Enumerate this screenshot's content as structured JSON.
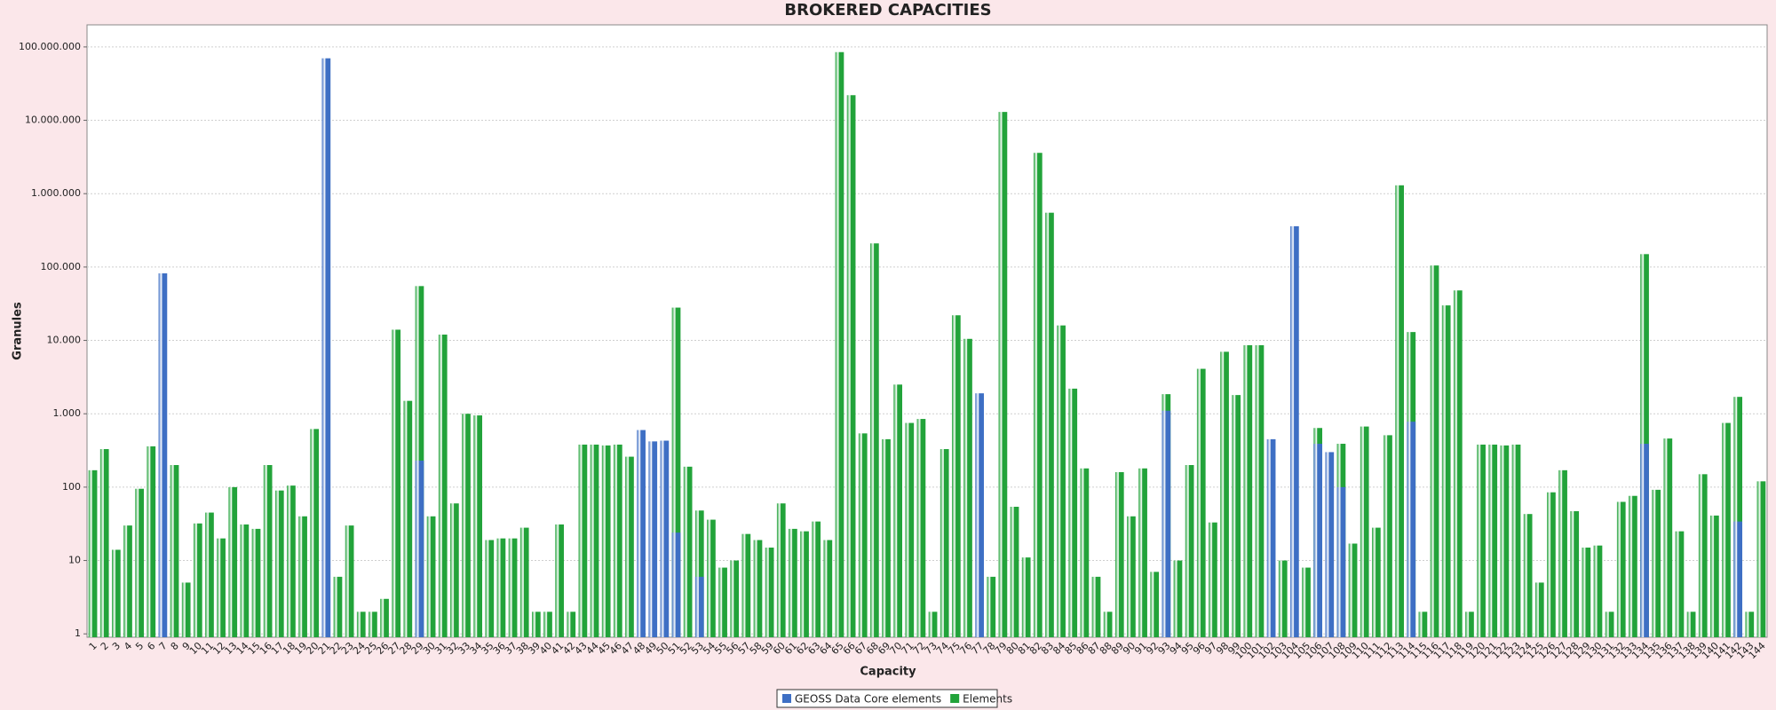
{
  "chart_data": {
    "type": "bar",
    "title": "BROKERED CAPACITIES",
    "x_label": "Capacity",
    "y_label": "Granules",
    "log_scale": true,
    "grid": true,
    "legend": "bottom",
    "categories": [
      "1",
      "2",
      "3",
      "4",
      "5",
      "6",
      "7",
      "8",
      "9",
      "10",
      "11",
      "12",
      "13",
      "14",
      "15",
      "16",
      "17",
      "18",
      "19",
      "20",
      "21",
      "22",
      "23",
      "24",
      "25",
      "26",
      "27",
      "28",
      "29",
      "30",
      "31",
      "32",
      "33",
      "34",
      "35",
      "36",
      "37",
      "38",
      "39",
      "40",
      "41",
      "42",
      "43",
      "44",
      "45",
      "46",
      "47",
      "48",
      "49",
      "50",
      "51",
      "52",
      "53",
      "54",
      "55",
      "56",
      "57",
      "58",
      "59",
      "60",
      "61",
      "62",
      "63",
      "64",
      "65",
      "66",
      "67",
      "68",
      "69",
      "70",
      "71",
      "72",
      "73",
      "74",
      "75",
      "76",
      "77",
      "78",
      "79",
      "80",
      "81",
      "82",
      "83",
      "84",
      "85",
      "86",
      "87",
      "88",
      "89",
      "90",
      "91",
      "92",
      "93",
      "94",
      "95",
      "96",
      "97",
      "98",
      "99",
      "100",
      "101",
      "102",
      "103",
      "104",
      "105",
      "106",
      "107",
      "108",
      "109",
      "110",
      "111",
      "112",
      "113",
      "114",
      "115",
      "116",
      "117",
      "118",
      "119",
      "120",
      "121",
      "122",
      "123",
      "124",
      "125",
      "126",
      "127",
      "128",
      "129",
      "130",
      "131",
      "132",
      "133",
      "134",
      "135",
      "136",
      "137",
      "138",
      "139",
      "140",
      "141",
      "142",
      "143",
      "144"
    ],
    "ylim": [
      0.9,
      200000000
    ],
    "yticks": [
      1,
      10,
      100,
      {
        "value": 1000,
        "label": "1.000"
      },
      {
        "value": 10000,
        "label": "10.000"
      },
      {
        "value": 100000,
        "label": "100.000"
      },
      {
        "value": 1000000,
        "label": "1.000.000"
      },
      {
        "value": 10000000,
        "label": "10.000.000"
      },
      {
        "value": 100000000,
        "label": "100.000.000"
      }
    ],
    "series": [
      {
        "name": "Elements",
        "color": "#22a33a",
        "values": [
          170,
          330,
          14,
          30,
          95,
          360,
          null,
          200,
          5,
          32,
          45,
          20,
          100,
          31,
          27,
          200,
          90,
          105,
          40,
          620,
          null,
          6,
          30,
          2,
          2,
          3,
          14000,
          1500,
          55000,
          40,
          12000,
          60,
          1000,
          950,
          19,
          20,
          20,
          28,
          2,
          2,
          31,
          2,
          380,
          380,
          370,
          380,
          260,
          null,
          null,
          null,
          28000,
          190,
          48,
          36,
          8,
          10,
          23,
          19,
          15,
          60,
          27,
          25,
          34,
          19,
          85000000,
          22000000,
          540,
          210000,
          450,
          2500,
          750,
          850,
          2,
          330,
          22000,
          10500,
          null,
          6,
          13000000,
          54,
          11,
          3600000,
          550000,
          16000,
          2200,
          180,
          6,
          2,
          160,
          40,
          180,
          7,
          1850,
          10,
          200,
          4100,
          33,
          7000,
          1800,
          8600,
          8600,
          null,
          10,
          null,
          8,
          640,
          null,
          390,
          17,
          670,
          28,
          510,
          1300000,
          13000,
          2,
          105000,
          30000,
          48000,
          2,
          380,
          380,
          370,
          380,
          43,
          5,
          85,
          170,
          47,
          15,
          16,
          2,
          63,
          76,
          150000,
          92,
          460,
          25,
          2,
          150,
          41,
          750,
          1700,
          2,
          120
        ]
      },
      {
        "name": "GEOSS Data Core elements",
        "color": "#3e6fc4",
        "values": [
          null,
          null,
          null,
          null,
          null,
          null,
          82000,
          null,
          null,
          null,
          null,
          null,
          null,
          null,
          null,
          null,
          null,
          null,
          null,
          null,
          70000000,
          null,
          null,
          null,
          null,
          null,
          null,
          null,
          230,
          null,
          null,
          null,
          null,
          null,
          null,
          null,
          null,
          null,
          null,
          null,
          null,
          null,
          null,
          null,
          null,
          null,
          null,
          600,
          420,
          430,
          24,
          null,
          6,
          null,
          null,
          null,
          null,
          null,
          null,
          null,
          null,
          null,
          null,
          null,
          null,
          null,
          null,
          null,
          null,
          null,
          null,
          null,
          null,
          null,
          null,
          null,
          1900,
          null,
          null,
          null,
          null,
          null,
          null,
          null,
          null,
          null,
          null,
          null,
          null,
          null,
          null,
          null,
          1100,
          null,
          null,
          null,
          null,
          null,
          null,
          null,
          null,
          450,
          null,
          360000,
          null,
          390,
          300,
          100,
          null,
          null,
          null,
          null,
          null,
          780,
          null,
          null,
          null,
          null,
          null,
          null,
          null,
          null,
          null,
          null,
          null,
          null,
          null,
          null,
          null,
          null,
          null,
          null,
          null,
          390,
          null,
          null,
          null,
          null,
          null,
          null,
          null,
          34,
          null,
          null
        ]
      }
    ]
  }
}
